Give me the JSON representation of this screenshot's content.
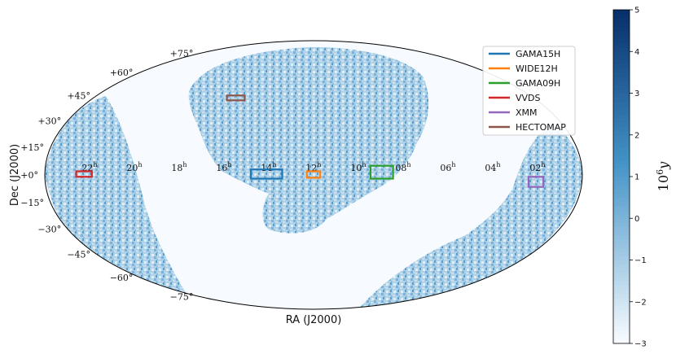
{
  "chart_data": {
    "type": "heatmap",
    "projection": "mollweide",
    "xlabel": "RA (J2000)",
    "ylabel": "Dec (J2000)",
    "ra_ticks_hours": [
      {
        "hours": 22,
        "label": "22"
      },
      {
        "hours": 20,
        "label": "20"
      },
      {
        "hours": 18,
        "label": "18"
      },
      {
        "hours": 16,
        "label": "16"
      },
      {
        "hours": 14,
        "label": "14"
      },
      {
        "hours": 12,
        "label": "12"
      },
      {
        "hours": 10,
        "label": "10"
      },
      {
        "hours": 8,
        "label": "08"
      },
      {
        "hours": 6,
        "label": "06"
      },
      {
        "hours": 4,
        "label": "04"
      },
      {
        "hours": 2,
        "label": "02"
      }
    ],
    "ra_tick_unit": "h",
    "dec_ticks": [
      {
        "deg": 75,
        "label": "+75°"
      },
      {
        "deg": 60,
        "label": "+60°"
      },
      {
        "deg": 45,
        "label": "+45°"
      },
      {
        "deg": 30,
        "label": "+30°"
      },
      {
        "deg": 15,
        "label": "+15°"
      },
      {
        "deg": 0,
        "label": "+0°"
      },
      {
        "deg": -15,
        "label": "−15°"
      },
      {
        "deg": -30,
        "label": "−30°"
      },
      {
        "deg": -45,
        "label": "−45°"
      },
      {
        "deg": -60,
        "label": "−60°"
      },
      {
        "deg": -75,
        "label": "−75°"
      }
    ],
    "colorbar": {
      "label": "10^6 y",
      "label_base": "10",
      "label_exp": "6",
      "label_var": "y",
      "range": [
        -3,
        5
      ],
      "ticks": [
        {
          "value": 5,
          "label": "5"
        },
        {
          "value": 4,
          "label": "4"
        },
        {
          "value": 3,
          "label": "3"
        },
        {
          "value": 2,
          "label": "2"
        },
        {
          "value": 1,
          "label": "1"
        },
        {
          "value": 0,
          "label": "0"
        },
        {
          "value": -1,
          "label": "−1"
        },
        {
          "value": -2,
          "label": "−2"
        },
        {
          "value": -3,
          "label": "−3"
        }
      ],
      "colormap": "Blues",
      "low_color": "#f7fbff",
      "high_color": "#08306b"
    },
    "legend_location": "top-right",
    "fields": [
      {
        "name": "GAMA15H",
        "color": "#1f77b4",
        "ra_range_h": [
          13.4,
          14.8
        ],
        "dec_range": [
          -2,
          3
        ]
      },
      {
        "name": "WIDE12H",
        "color": "#ff7f0e",
        "ra_range_h": [
          11.7,
          12.3
        ],
        "dec_range": [
          -1.5,
          2
        ]
      },
      {
        "name": "GAMA09H",
        "color": "#2ca02c",
        "ra_range_h": [
          8.45,
          9.45
        ],
        "dec_range": [
          -2,
          5
        ]
      },
      {
        "name": "VVDS",
        "color": "#d62728",
        "ra_range_h": [
          21.9,
          22.6
        ],
        "dec_range": [
          -1,
          2
        ]
      },
      {
        "name": "XMM",
        "color": "#9467bd",
        "ra_range_h": [
          1.7,
          2.4
        ],
        "dec_range": [
          -6.5,
          -1
        ]
      },
      {
        "name": "HECTOMAP",
        "color": "#8c564b",
        "ra_range_h": [
          15.7,
          16.8
        ],
        "dec_range": [
          42,
          45
        ]
      }
    ]
  }
}
